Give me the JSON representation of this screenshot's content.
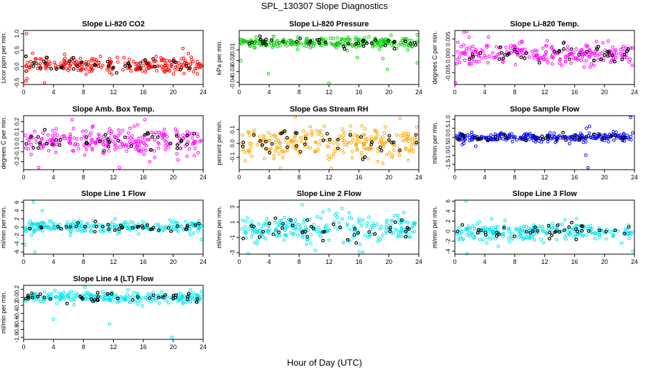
{
  "figure": {
    "title": "SPL_130307  Slope Diagnostics",
    "xlabel": "Hour of Day (UTC)"
  },
  "chart_data": [
    {
      "type": "scatter",
      "title": "Slope Li-820 CO2",
      "ylabel": "Licor ppm per min.",
      "xlim": [
        0,
        24
      ],
      "ylim": [
        -0.55,
        1.1
      ],
      "xticks": [
        0,
        4,
        8,
        12,
        16,
        20,
        24
      ],
      "yticks": [
        -0.5,
        0.0,
        0.5,
        1.0
      ],
      "ytick_labels": [
        "-0.5",
        "0.0",
        "0.5",
        "1.0"
      ],
      "color": "#ff0000",
      "center": 0.05,
      "spread": 0.12,
      "outliers": [
        [
          0.4,
          1.0
        ],
        [
          0.3,
          -0.45
        ],
        [
          2.8,
          -0.5
        ],
        [
          21.3,
          0.55
        ],
        [
          1.2,
          0.4
        ]
      ]
    },
    {
      "type": "scatter",
      "title": "Slope Li-820 Pressure",
      "ylabel": "kPa per min.",
      "xlim": [
        0,
        24
      ],
      "ylim": [
        -0.042,
        0.008
      ],
      "xticks": [
        0,
        4,
        8,
        12,
        16,
        20,
        24
      ],
      "yticks": [
        -0.04,
        -0.03,
        -0.02,
        -0.01
      ],
      "ytick_labels": [
        "-0.04",
        "-0.03",
        "-0.02",
        "-0.01"
      ],
      "color": "#00cc00",
      "center": -0.0035,
      "spread": 0.0025,
      "outliers": [
        [
          0.2,
          -0.02
        ],
        [
          3.9,
          -0.032
        ],
        [
          12.0,
          -0.041
        ],
        [
          15.8,
          -0.017
        ],
        [
          19.2,
          -0.018
        ],
        [
          19.8,
          -0.028
        ],
        [
          23.8,
          -0.022
        ],
        [
          23.8,
          0.004
        ]
      ]
    },
    {
      "type": "scatter",
      "title": "Slope Li-820 Temp.",
      "ylabel": "degrees C per min.",
      "xlim": [
        0,
        24
      ],
      "ylim": [
        -0.0085,
        0.0075
      ],
      "xticks": [
        0,
        4,
        8,
        12,
        16,
        20,
        24
      ],
      "yticks": [
        -0.005,
        0.0,
        0.005
      ],
      "ytick_labels": [
        "-0.005",
        "0.000",
        "0.005"
      ],
      "color": "#ff00ff",
      "center": 0.0005,
      "spread": 0.0016,
      "outliers": [
        [
          0.1,
          -0.008
        ],
        [
          1.2,
          0.007
        ],
        [
          1.6,
          0.0072
        ],
        [
          1.9,
          0.0055
        ],
        [
          0.4,
          0.004
        ]
      ]
    },
    {
      "type": "scatter",
      "title": "Slope Amb. Box Temp.",
      "ylabel": "degrees C per min.",
      "xlim": [
        0,
        24
      ],
      "ylim": [
        -0.28,
        0.26
      ],
      "xticks": [
        0,
        4,
        8,
        12,
        16,
        20,
        24
      ],
      "yticks": [
        -0.2,
        -0.1,
        0.0,
        0.1,
        0.2
      ],
      "ytick_labels": [
        "-0.2",
        "-0.1",
        "0.0",
        "0.1",
        "0.2"
      ],
      "color": "#ff00ff",
      "center": 0.0,
      "spread": 0.07,
      "outliers": [
        [
          2.0,
          -0.26
        ],
        [
          6.5,
          0.22
        ],
        [
          12.8,
          -0.26
        ],
        [
          16.2,
          0.22
        ]
      ]
    },
    {
      "type": "scatter",
      "title": "Slope Gas Stream RH",
      "ylabel": "percent per min.",
      "xlim": [
        0,
        24
      ],
      "ylim": [
        -0.19,
        0.2
      ],
      "xticks": [
        0,
        4,
        8,
        12,
        16,
        20,
        24
      ],
      "yticks": [
        -0.1,
        0.0,
        0.1
      ],
      "ytick_labels": [
        "-0.1",
        "0.0",
        "0.1"
      ],
      "color": "#ffa500",
      "center": 0.0,
      "spread": 0.055,
      "outliers": [
        [
          5.5,
          -0.18
        ],
        [
          7.5,
          0.19
        ],
        [
          12.3,
          -0.18
        ],
        [
          21.5,
          0.18
        ]
      ]
    },
    {
      "type": "scatter",
      "title": "Slope Sample Flow",
      "ylabel": "ml/min per min.",
      "xlim": [
        0,
        24
      ],
      "ylim": [
        -1.8,
        1.2
      ],
      "xticks": [
        0,
        4,
        8,
        12,
        16,
        20,
        24
      ],
      "yticks": [
        -1.5,
        -1.0,
        -0.5,
        0.0,
        0.5,
        1.0
      ],
      "ytick_labels": [
        "-1.5",
        "-1.0",
        "-0.5",
        "0.0",
        "0.5",
        "1.0"
      ],
      "color": "#0000ff",
      "center": 0.0,
      "spread": 0.12,
      "outliers": [
        [
          17.8,
          -1.7
        ],
        [
          17.5,
          -1.0
        ],
        [
          18.0,
          0.6
        ],
        [
          23.5,
          1.1
        ],
        [
          2.8,
          -0.5
        ],
        [
          17.6,
          0.5
        ]
      ]
    },
    {
      "type": "scatter",
      "title": "Slope Line 1 Flow",
      "ylabel": "ml/min per min.",
      "xlim": [
        0,
        24
      ],
      "ylim": [
        -6.5,
        6.5
      ],
      "xticks": [
        0,
        4,
        8,
        12,
        16,
        20,
        24
      ],
      "yticks": [
        -6,
        -4,
        -2,
        0,
        2,
        4,
        6
      ],
      "ytick_labels": [
        "-6",
        "-4",
        "-2",
        "0",
        "2",
        "4",
        "6"
      ],
      "color": "#00e5ee",
      "center": 0.0,
      "spread": 0.8,
      "outliers": [
        [
          1.3,
          6.0
        ],
        [
          1.5,
          -6.0
        ],
        [
          0.2,
          -4.2
        ],
        [
          23.8,
          -3.0
        ],
        [
          2.5,
          4.0
        ]
      ]
    },
    {
      "type": "scatter",
      "title": "Slope Line 2 Flow",
      "ylabel": "ml/min per min.",
      "xlim": [
        0,
        24
      ],
      "ylim": [
        -3.2,
        3.9
      ],
      "xticks": [
        0,
        4,
        8,
        12,
        16,
        20,
        24
      ],
      "yticks": [
        -3,
        -1,
        1,
        3
      ],
      "ytick_labels": [
        "-3",
        "-1",
        "1",
        "3"
      ],
      "color": "#00e5ee",
      "center": 0.0,
      "spread": 0.9,
      "outliers": [
        [
          8.4,
          3.3
        ],
        [
          12.0,
          2.6
        ],
        [
          16.0,
          -2.9
        ],
        [
          1.2,
          -3.1
        ]
      ]
    },
    {
      "type": "scatter",
      "title": "Slope Line 3 Flow",
      "ylabel": "ml/min per min.",
      "xlim": [
        0,
        24
      ],
      "ylim": [
        -4.6,
        6.2
      ],
      "xticks": [
        0,
        4,
        8,
        12,
        16,
        20,
        24
      ],
      "yticks": [
        -4,
        -2,
        0,
        2,
        4,
        6
      ],
      "ytick_labels": [
        "-4",
        "-2",
        "0",
        "2",
        "4",
        "6"
      ],
      "color": "#00e5ee",
      "center": 0.0,
      "spread": 0.9,
      "outliers": [
        [
          1.5,
          6.0
        ],
        [
          1.6,
          -4.5
        ],
        [
          23.8,
          -4.0
        ]
      ]
    },
    {
      "type": "scatter",
      "title": "Slope Line 4 (LT) Flow",
      "ylabel": "ml/min per min.",
      "xlim": [
        0,
        24
      ],
      "ylim": [
        -1.05,
        0.3
      ],
      "xticks": [
        0,
        4,
        8,
        12,
        16,
        20,
        24
      ],
      "yticks": [
        -1.0,
        -0.8,
        -0.6,
        -0.4,
        -0.2,
        0.0,
        0.2
      ],
      "ytick_labels": [
        "-1.0",
        "-0.8",
        "-0.6",
        "-0.4",
        "-0.2",
        "0.0",
        "0.2"
      ],
      "color": "#00e5ee",
      "center": 0.0,
      "spread": 0.07,
      "outliers": [
        [
          4.0,
          -0.55
        ],
        [
          11.5,
          -0.67
        ],
        [
          19.8,
          -1.0
        ],
        [
          8.2,
          0.25
        ]
      ]
    }
  ]
}
